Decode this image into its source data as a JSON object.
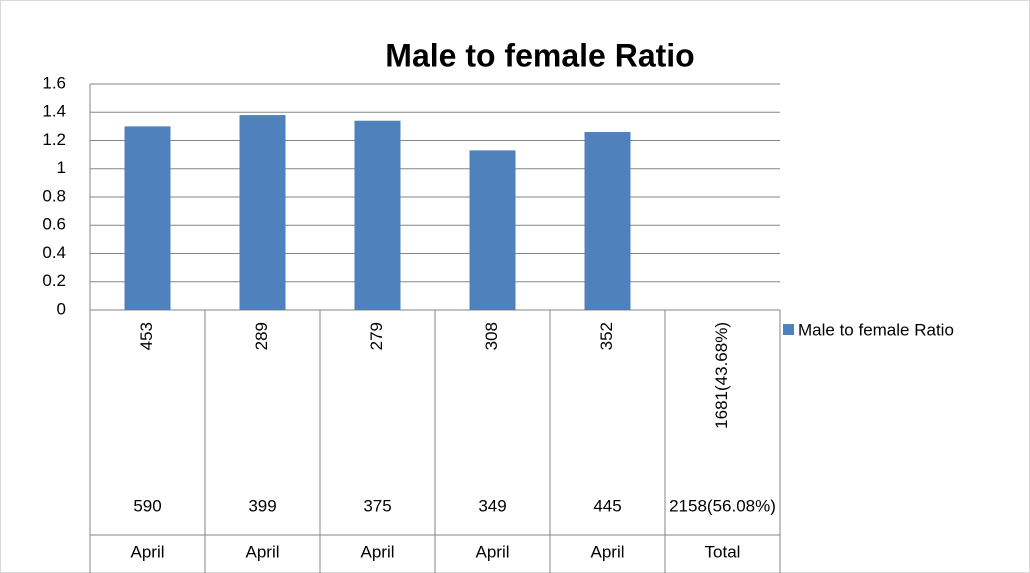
{
  "chart_data": {
    "type": "bar",
    "title": "Male to female Ratio",
    "category_levels": [
      [
        "453",
        "289",
        "279",
        "308",
        "352",
        "1681(43.68%)"
      ],
      [
        "590",
        "399",
        "375",
        "349",
        "445",
        "2158(56.08%)"
      ],
      [
        "April",
        "April",
        "April",
        "April",
        "April",
        "Total"
      ]
    ],
    "series": [
      {
        "name": "Male to female Ratio",
        "color": "#4f81bd",
        "values": [
          1.3,
          1.38,
          1.34,
          1.13,
          1.26,
          null
        ]
      }
    ],
    "ylim": [
      0,
      1.6
    ],
    "yticks": [
      0,
      0.2,
      0.4,
      0.6,
      0.8,
      1,
      1.2,
      1.4,
      1.6
    ],
    "grid": true,
    "legend": "right"
  }
}
